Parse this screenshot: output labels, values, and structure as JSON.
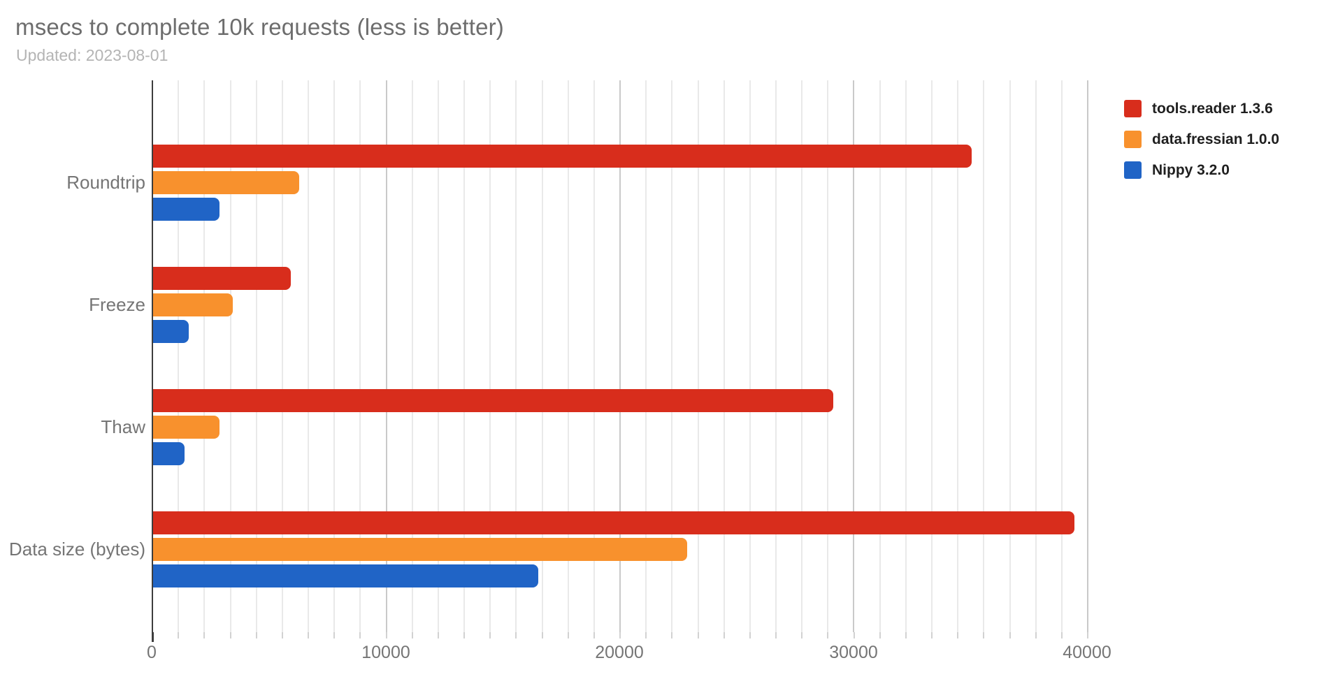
{
  "title": "msecs to complete 10k requests (less is better)",
  "subtitle": "Updated: 2023-08-01",
  "chart_data": {
    "type": "bar",
    "orientation": "horizontal",
    "title": "msecs to complete 10k requests (less is better)",
    "subtitle": "Updated: 2023-08-01",
    "categories": [
      "Roundtrip",
      "Freeze",
      "Thaw",
      "Data size (bytes)"
    ],
    "series": [
      {
        "name": "tools.reader 1.3.6",
        "color": "#d82d1c",
        "values": [
          35000,
          5900,
          29100,
          39400
        ]
      },
      {
        "name": "data.fressian 1.0.0",
        "color": "#f8912d",
        "values": [
          6250,
          3400,
          2850,
          22850
        ]
      },
      {
        "name": "Nippy 3.2.0",
        "color": "#2064c6",
        "values": [
          2850,
          1520,
          1350,
          16480
        ]
      }
    ],
    "xlabel": "",
    "ylabel": "",
    "x_ticks": [
      0,
      10000,
      20000,
      30000,
      40000
    ],
    "x_tick_labels": [
      "0",
      "10000",
      "20000",
      "30000",
      "40000"
    ],
    "xlim": [
      0,
      40150
    ],
    "minor_gridlines_per_major": 9,
    "grid": true,
    "legend_position": "top-right",
    "colors": {
      "title_text": "#6d6d6d",
      "subtitle_text": "#b4b4b4",
      "axis_text": "#757575",
      "legend_text": "#1f1f1f",
      "minor_gridline": "#e9e9e9",
      "major_gridline": "#c9c9c9",
      "axis_line": "#3d3d3d",
      "background": "#ffffff"
    }
  }
}
